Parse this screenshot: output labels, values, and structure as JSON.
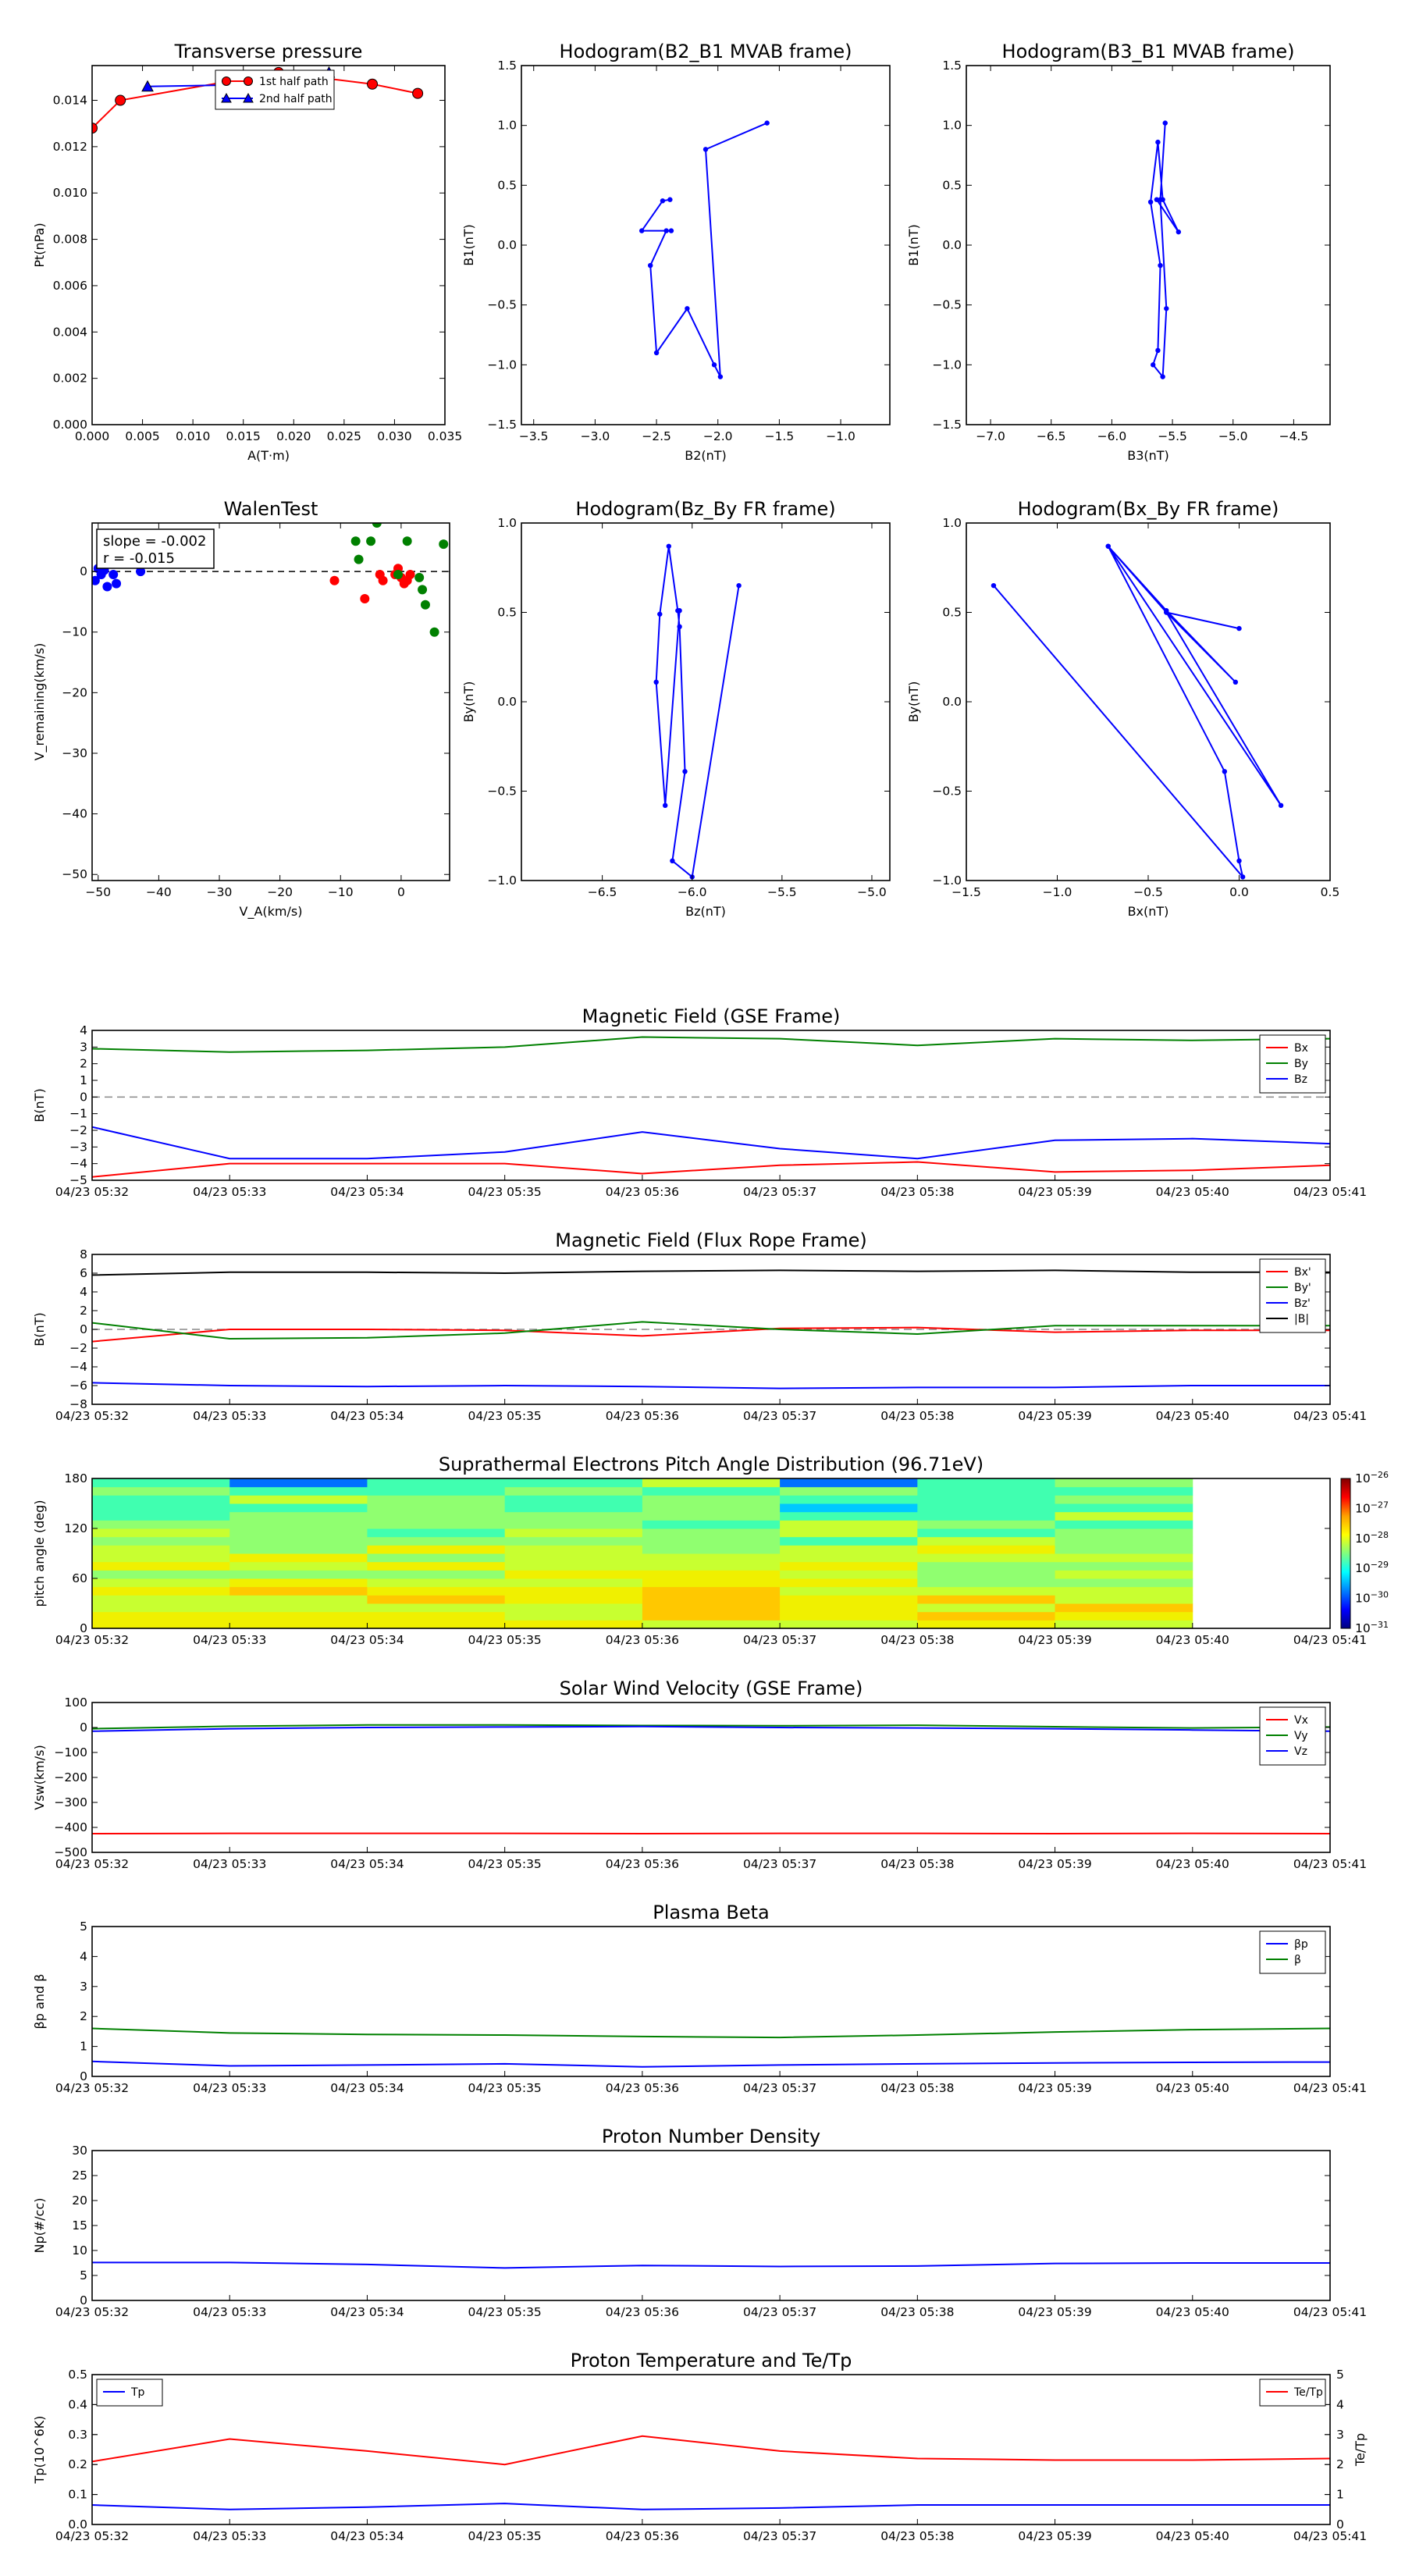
{
  "colors": {
    "red": "#ff0000",
    "green": "#008000",
    "blue": "#0000ff",
    "black": "#000000",
    "gray": "#888888"
  },
  "chart_data": [
    {
      "id": "tp",
      "type": "line",
      "title": "Transverse pressure",
      "xlabel": "A(T·m)",
      "ylabel": "Pt(nPa)",
      "xlim": [
        0,
        0.035
      ],
      "ylim": [
        0,
        0.0155
      ],
      "xticks": [
        0,
        0.005,
        0.01,
        0.015,
        0.02,
        0.025,
        0.03,
        0.035
      ],
      "xtick_labels": [
        "0.000",
        "0.005",
        "0.010",
        "0.015",
        "0.020",
        "0.025",
        "0.030",
        "0.035"
      ],
      "yticks": [
        0,
        0.002,
        0.004,
        0.006,
        0.008,
        0.01,
        0.012,
        0.014
      ],
      "ytick_labels": [
        "0.000",
        "0.002",
        "0.004",
        "0.006",
        "0.008",
        "0.010",
        "0.012",
        "0.014"
      ],
      "legend": {
        "position": "top-center"
      },
      "series": [
        {
          "name": "1st half path",
          "color": "red",
          "marker": "circle",
          "x": [
            0,
            0.0028,
            0.0185,
            0.0278,
            0.0323
          ],
          "y": [
            0.0128,
            0.014,
            0.0152,
            0.0147,
            0.0143
          ]
        },
        {
          "name": "2nd half path",
          "color": "blue",
          "marker": "triangle",
          "x": [
            0.0055,
            0.019,
            0.0235
          ],
          "y": [
            0.0146,
            0.0147,
            0.0152
          ]
        }
      ]
    },
    {
      "id": "h1",
      "type": "line",
      "title": "Hodogram(B2_B1 MVAB frame)",
      "xlabel": "B2(nT)",
      "ylabel": "B1(nT)",
      "xlim": [
        -3.6,
        -0.6
      ],
      "ylim": [
        -1.5,
        1.5
      ],
      "xticks": [
        -3.5,
        -3.0,
        -2.5,
        -2.0,
        -1.5,
        -1.0
      ],
      "xtick_labels": [
        "−3.5",
        "−3.0",
        "−2.5",
        "−2.0",
        "−1.5",
        "−1.0"
      ],
      "yticks": [
        -1.5,
        -1.0,
        -0.5,
        0.0,
        0.5,
        1.0,
        1.5
      ],
      "ytick_labels": [
        "−1.5",
        "−1.0",
        "−0.5",
        "0.0",
        "0.5",
        "1.0",
        "1.5"
      ],
      "series": [
        {
          "color": "blue",
          "marker": "dot",
          "x": [
            -1.6,
            -2.1,
            -1.98,
            -2.03,
            -2.25,
            -2.5,
            -2.55,
            -2.42,
            -2.38,
            -2.62,
            -2.45,
            -2.39
          ],
          "y": [
            1.02,
            0.8,
            -1.1,
            -1.0,
            -0.53,
            -0.9,
            -0.17,
            0.12,
            0.12,
            0.12,
            0.37,
            0.38
          ]
        }
      ]
    },
    {
      "id": "h2",
      "type": "line",
      "title": "Hodogram(B3_B1 MVAB frame)",
      "xlabel": "B3(nT)",
      "ylabel": "B1(nT)",
      "xlim": [
        -7.2,
        -4.2
      ],
      "ylim": [
        -1.5,
        1.5
      ],
      "xticks": [
        -7.0,
        -6.5,
        -6.0,
        -5.5,
        -5.0,
        -4.5
      ],
      "xtick_labels": [
        "−7.0",
        "−6.5",
        "−6.0",
        "−5.5",
        "−5.0",
        "−4.5"
      ],
      "yticks": [
        -1.5,
        -1.0,
        -0.5,
        0.0,
        0.5,
        1.0,
        1.5
      ],
      "ytick_labels": [
        "−1.5",
        "−1.0",
        "−0.5",
        "0.0",
        "0.5",
        "1.0",
        "1.5"
      ],
      "series": [
        {
          "color": "blue",
          "marker": "dot",
          "x": [
            -5.56,
            -5.6,
            -5.55,
            -5.58,
            -5.66,
            -5.62,
            -5.6,
            -5.68,
            -5.62,
            -5.58,
            -5.45,
            -5.63
          ],
          "y": [
            1.02,
            0.38,
            -0.53,
            -1.1,
            -1.0,
            -0.88,
            -0.17,
            0.36,
            0.86,
            0.38,
            0.11,
            0.38
          ]
        }
      ]
    },
    {
      "id": "wt",
      "type": "scatter",
      "title": "WalenTest",
      "xlabel": "V_A(km/s)",
      "ylabel": "V_remaining(km/s)",
      "xlim": [
        -51,
        8
      ],
      "ylim": [
        -51,
        8
      ],
      "xticks": [
        -50,
        -40,
        -30,
        -20,
        -10,
        0
      ],
      "xtick_labels": [
        "−50",
        "−40",
        "−30",
        "−20",
        "−10",
        "0"
      ],
      "yticks": [
        -50,
        -40,
        -30,
        -20,
        -10,
        0
      ],
      "ytick_labels": [
        "−50",
        "−40",
        "−30",
        "−20",
        "−10",
        "0"
      ],
      "annotation": [
        "slope = -0.002",
        "r = -0.015"
      ],
      "series": [
        {
          "color": "blue",
          "x": [
            -50.5,
            -50,
            -49.5,
            -49,
            -48.5,
            -47.5,
            -47,
            -43
          ],
          "y": [
            -1.5,
            0.5,
            -0.5,
            0.2,
            -2.5,
            -0.5,
            -2,
            0
          ]
        },
        {
          "color": "red",
          "x": [
            -11,
            -6,
            -3.5,
            -3,
            -1,
            -0.5,
            0,
            0.5,
            1,
            1.5
          ],
          "y": [
            -1.5,
            -4.5,
            -0.5,
            -1.5,
            -0.5,
            0.5,
            -1,
            -2,
            -1.5,
            -0.5
          ]
        },
        {
          "color": "green",
          "x": [
            -7.5,
            -7,
            -5,
            -4,
            -0.5,
            1,
            3,
            3.5,
            4,
            5.5,
            7
          ],
          "y": [
            5,
            2,
            5,
            8,
            -0.5,
            5,
            -1,
            -3,
            -5.5,
            -10,
            4.5
          ]
        }
      ]
    },
    {
      "id": "h3",
      "type": "line",
      "title": "Hodogram(Bz_By FR frame)",
      "xlabel": "Bz(nT)",
      "ylabel": "By(nT)",
      "xlim": [
        -6.95,
        -4.9
      ],
      "ylim": [
        -1.0,
        1.0
      ],
      "xticks": [
        -6.5,
        -6.0,
        -5.5,
        -5.0
      ],
      "xtick_labels": [
        "−6.5",
        "−6.0",
        "−5.5",
        "−5.0"
      ],
      "yticks": [
        -1.0,
        -0.5,
        0.0,
        0.5,
        1.0
      ],
      "ytick_labels": [
        "−1.0",
        "−0.5",
        "0.0",
        "0.5",
        "1.0"
      ],
      "series": [
        {
          "color": "blue",
          "marker": "dot",
          "x": [
            -5.74,
            -6.0,
            -6.11,
            -6.04,
            -6.07,
            -6.08,
            -6.13,
            -6.18,
            -6.2,
            -6.15,
            -6.07
          ],
          "y": [
            0.65,
            -0.98,
            -0.89,
            -0.39,
            0.42,
            0.51,
            0.87,
            0.49,
            0.11,
            -0.58,
            0.51
          ]
        }
      ]
    },
    {
      "id": "h4",
      "type": "line",
      "title": "Hodogram(Bx_By FR frame)",
      "xlabel": "Bx(nT)",
      "ylabel": "By(nT)",
      "xlim": [
        -1.5,
        0.5
      ],
      "ylim": [
        -1.0,
        1.0
      ],
      "xticks": [
        -1.5,
        -1.0,
        -0.5,
        0.0,
        0.5
      ],
      "xtick_labels": [
        "−1.5",
        "−1.0",
        "−0.5",
        "0.0",
        "0.5"
      ],
      "yticks": [
        -1.0,
        -0.5,
        0.0,
        0.5,
        1.0
      ],
      "ytick_labels": [
        "−1.0",
        "−0.5",
        "0.0",
        "0.5",
        "1.0"
      ],
      "series": [
        {
          "color": "blue",
          "marker": "dot",
          "x": [
            -1.35,
            0.02,
            0.0,
            -0.08,
            -0.72,
            0.23,
            -0.4,
            -0.72,
            -0.4,
            -0.02,
            -0.4,
            0.0
          ],
          "y": [
            0.65,
            -0.98,
            -0.89,
            -0.39,
            0.87,
            -0.58,
            0.5,
            0.87,
            0.51,
            0.11,
            0.5,
            0.41
          ]
        }
      ]
    },
    {
      "id": "mf_gse",
      "type": "line",
      "title": "Magnetic Field (GSE Frame)",
      "ylabel": "B(nT)",
      "ylim": [
        -5,
        4
      ],
      "yticks": [
        -5,
        -4,
        -3,
        -2,
        -1,
        0,
        1,
        2,
        3,
        4
      ],
      "ytick_labels": [
        "−5",
        "−4",
        "−3",
        "−2",
        "−1",
        "0",
        "1",
        "2",
        "3",
        "4"
      ],
      "zero_line": true,
      "legend": {
        "position": "top-right"
      },
      "series": [
        {
          "name": "Bx",
          "color": "red",
          "values": [
            -4.8,
            -4.0,
            -4.0,
            -4.0,
            -4.6,
            -4.1,
            -3.9,
            -4.5,
            -4.4,
            -4.1
          ]
        },
        {
          "name": "By",
          "color": "green",
          "values": [
            2.9,
            2.7,
            2.8,
            3.0,
            3.6,
            3.5,
            3.1,
            3.5,
            3.4,
            3.5
          ]
        },
        {
          "name": "Bz",
          "color": "blue",
          "values": [
            -1.8,
            -3.7,
            -3.7,
            -3.3,
            -2.1,
            -3.1,
            -3.7,
            -2.6,
            -2.5,
            -2.8
          ]
        }
      ]
    },
    {
      "id": "mf_fr",
      "type": "line",
      "title": "Magnetic Field (Flux Rope Frame)",
      "ylabel": "B(nT)",
      "ylim": [
        -8,
        8
      ],
      "yticks": [
        -8,
        -6,
        -4,
        -2,
        0,
        2,
        4,
        6,
        8
      ],
      "ytick_labels": [
        "−8",
        "−6",
        "−4",
        "−2",
        "0",
        "2",
        "4",
        "6",
        "8"
      ],
      "zero_line": true,
      "legend": {
        "position": "top-right"
      },
      "series": [
        {
          "name": "Bx'",
          "color": "red",
          "values": [
            -1.3,
            0.0,
            0.0,
            -0.1,
            -0.7,
            0.1,
            0.2,
            -0.3,
            -0.1,
            -0.1
          ]
        },
        {
          "name": "By'",
          "color": "green",
          "values": [
            0.7,
            -1.0,
            -0.9,
            -0.4,
            0.8,
            0.0,
            -0.5,
            0.4,
            0.4,
            0.4
          ]
        },
        {
          "name": "Bz'",
          "color": "blue",
          "values": [
            -5.7,
            -6.0,
            -6.1,
            -6.0,
            -6.1,
            -6.3,
            -6.2,
            -6.2,
            -6.0,
            -6.0
          ]
        },
        {
          "name": "|B|",
          "color": "black",
          "values": [
            5.8,
            6.1,
            6.1,
            6.0,
            6.2,
            6.3,
            6.2,
            6.3,
            6.1,
            6.1
          ]
        }
      ]
    },
    {
      "id": "pad",
      "type": "heatmap",
      "title": "Suprathermal Electrons Pitch Angle Distribution (96.71eV)",
      "ylabel": "pitch angle (deg)",
      "ylim": [
        0,
        180
      ],
      "yticks": [
        0,
        60,
        120,
        180
      ],
      "ytick_labels": [
        "0",
        "60",
        "120",
        "180"
      ],
      "colorbar": {
        "labels": [
          "10^-26",
          "10^-27",
          "10^-28",
          "10^-29",
          "10^-30",
          "10^-31"
        ]
      }
    },
    {
      "id": "vsw",
      "type": "line",
      "title": "Solar Wind Velocity (GSE Frame)",
      "ylabel": "Vsw(km/s)",
      "ylim": [
        -500,
        100
      ],
      "yticks": [
        -500,
        -400,
        -300,
        -200,
        -100,
        0,
        100
      ],
      "ytick_labels": [
        "−500",
        "−400",
        "−300",
        "−200",
        "−100",
        "0",
        "100"
      ],
      "legend": {
        "position": "top-right"
      },
      "series": [
        {
          "name": "Vx",
          "color": "red",
          "values": [
            -425,
            -424,
            -424,
            -424,
            -425,
            -424,
            -424,
            -425,
            -424,
            -425
          ]
        },
        {
          "name": "Vy",
          "color": "green",
          "values": [
            -5,
            5,
            10,
            10,
            8,
            7,
            9,
            3,
            -2,
            2
          ]
        },
        {
          "name": "Vz",
          "color": "blue",
          "values": [
            -15,
            -5,
            0,
            2,
            4,
            0,
            -2,
            -5,
            -10,
            -15
          ]
        }
      ]
    },
    {
      "id": "beta",
      "type": "line",
      "title": "Plasma Beta",
      "ylabel": "βp and β",
      "ylim": [
        0,
        5
      ],
      "yticks": [
        0,
        1,
        2,
        3,
        4,
        5
      ],
      "ytick_labels": [
        "0",
        "1",
        "2",
        "3",
        "4",
        "5"
      ],
      "legend": {
        "position": "top-right"
      },
      "series": [
        {
          "name": "βp",
          "color": "blue",
          "values": [
            0.5,
            0.35,
            0.38,
            0.42,
            0.32,
            0.38,
            0.42,
            0.45,
            0.47,
            0.48
          ]
        },
        {
          "name": "β",
          "color": "green",
          "values": [
            1.6,
            1.45,
            1.4,
            1.38,
            1.33,
            1.3,
            1.38,
            1.48,
            1.56,
            1.6
          ]
        }
      ]
    },
    {
      "id": "np",
      "type": "line",
      "title": "Proton Number Density",
      "ylabel": "Np(#/cc)",
      "ylim": [
        0,
        30
      ],
      "yticks": [
        0,
        5,
        10,
        15,
        20,
        25,
        30
      ],
      "ytick_labels": [
        "0",
        "5",
        "10",
        "15",
        "20",
        "25",
        "30"
      ],
      "series": [
        {
          "color": "blue",
          "values": [
            7.6,
            7.6,
            7.2,
            6.5,
            7.0,
            6.8,
            6.9,
            7.4,
            7.5,
            7.5
          ]
        }
      ]
    },
    {
      "id": "temp",
      "type": "line",
      "title": "Proton Temperature and Te/Tp",
      "ylabel": "Tp(10^6K)",
      "y2label": "Te/Tp",
      "ylim": [
        0,
        0.5
      ],
      "yticks": [
        0,
        0.1,
        0.2,
        0.3,
        0.4,
        0.5
      ],
      "ytick_labels": [
        "0.0",
        "0.1",
        "0.2",
        "0.3",
        "0.4",
        "0.5"
      ],
      "y2lim": [
        0,
        5
      ],
      "y2ticks": [
        0,
        1,
        2,
        3,
        4,
        5
      ],
      "y2tick_labels": [
        "0",
        "1",
        "2",
        "3",
        "4",
        "5"
      ],
      "legend": {
        "position": "top-left / top-right"
      },
      "series": [
        {
          "name": "Tp",
          "color": "blue",
          "axis": "left",
          "values": [
            0.065,
            0.05,
            0.058,
            0.07,
            0.05,
            0.055,
            0.065,
            0.065,
            0.065,
            0.065
          ]
        },
        {
          "name": "Te/Tp",
          "color": "red",
          "axis": "right",
          "values": [
            2.1,
            2.85,
            2.45,
            2.0,
            2.95,
            2.45,
            2.2,
            2.15,
            2.15,
            2.2
          ]
        }
      ]
    }
  ],
  "time_axis": {
    "tick_labels": [
      "04/23 05:32",
      "04/23 05:33",
      "04/23 05:34",
      "04/23 05:35",
      "04/23 05:36",
      "04/23 05:37",
      "04/23 05:38",
      "04/23 05:39",
      "04/23 05:40",
      "04/23 05:41"
    ]
  }
}
